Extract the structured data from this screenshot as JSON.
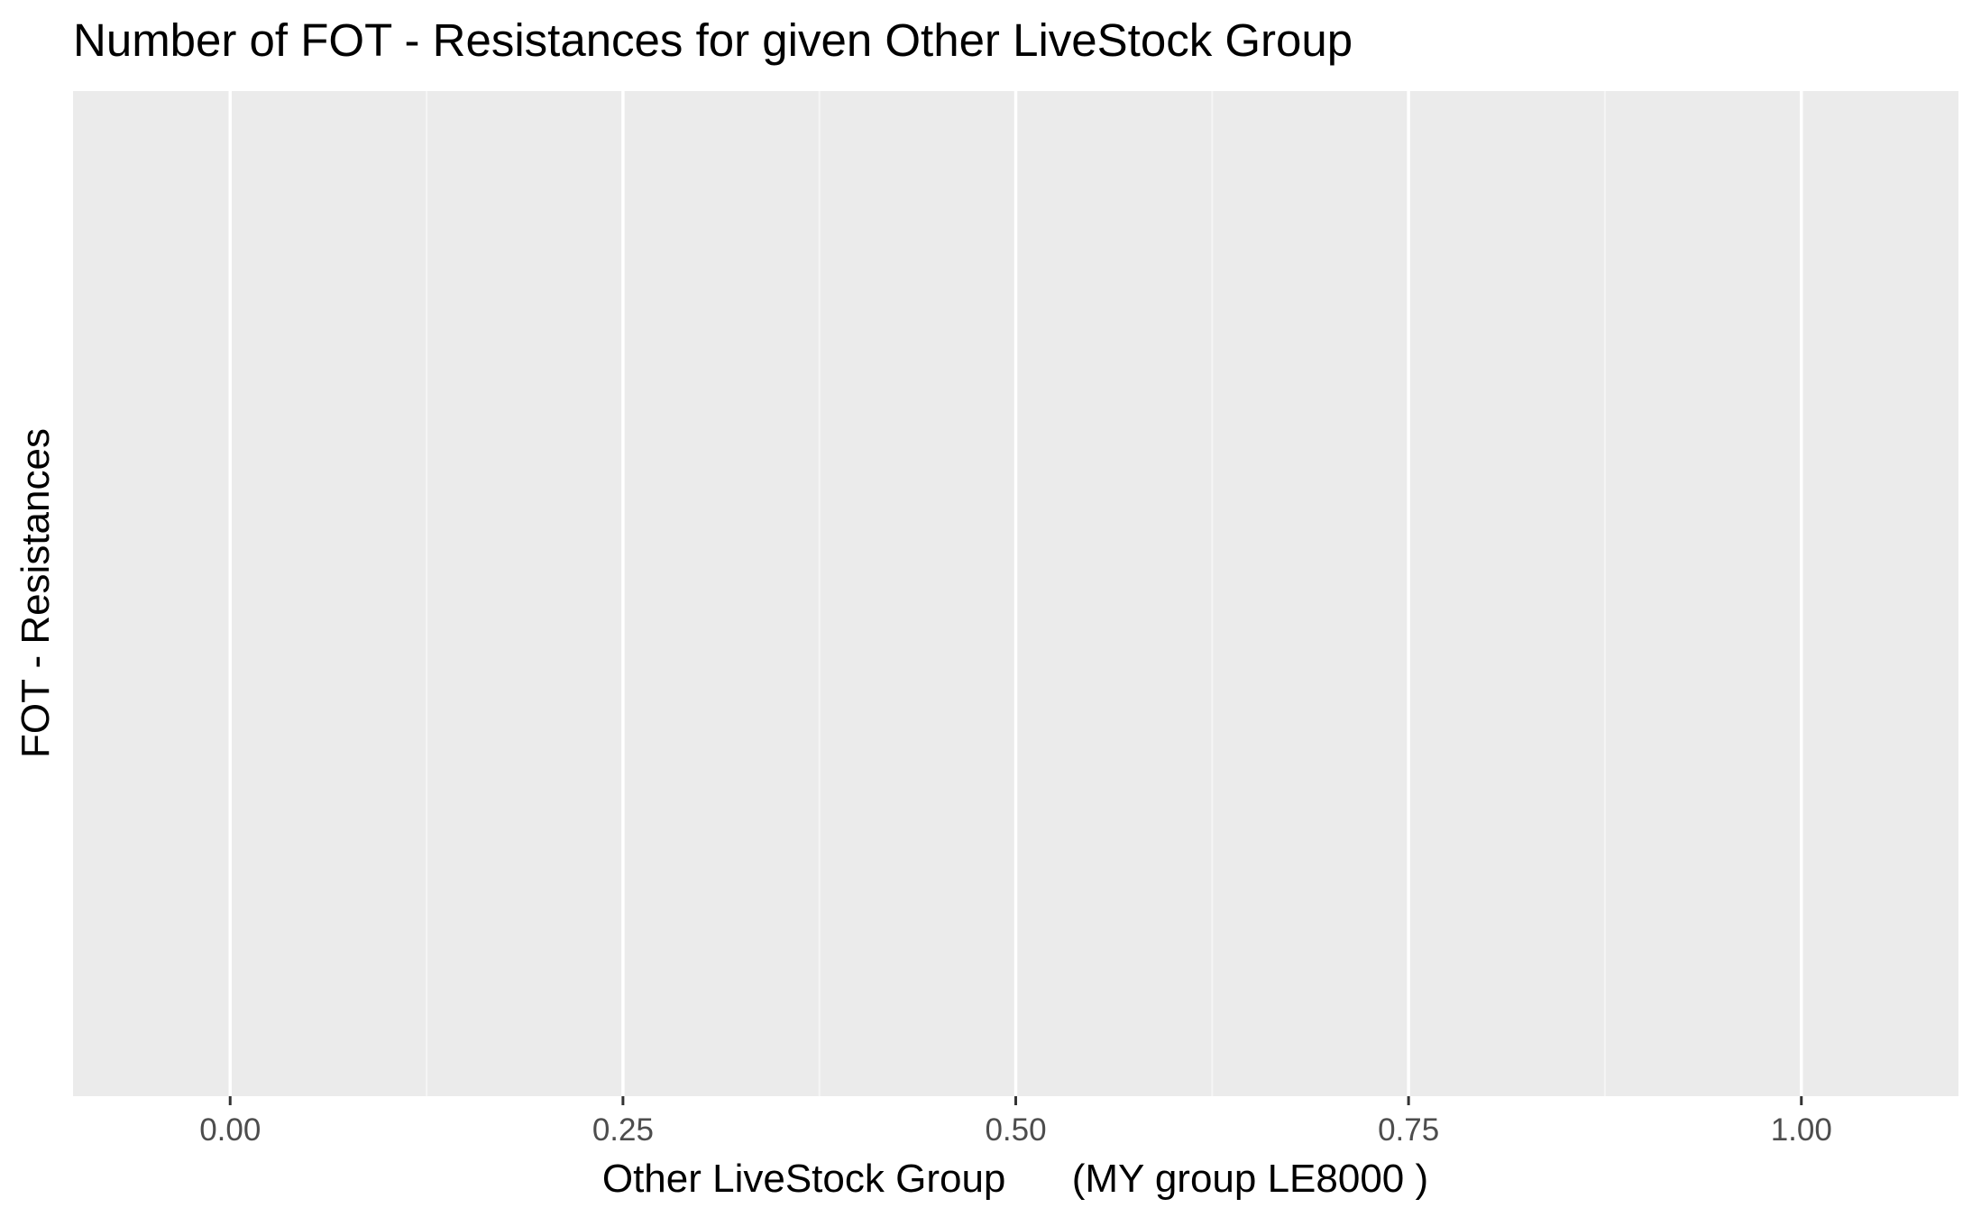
{
  "chart_data": {
    "type": "bar",
    "title": "Number of FOT - Resistances for given Other LiveStock Group",
    "xlabel": "Other LiveStock Group      (MY group LE8000 )",
    "ylabel": "FOT - Resistances",
    "x_ticks": [
      "0.00",
      "0.25",
      "0.50",
      "0.75",
      "1.00"
    ],
    "x_tick_values": [
      0,
      0.25,
      0.5,
      0.75,
      1.0
    ],
    "xlim": [
      -0.1,
      1.1
    ],
    "categories": [],
    "values": [],
    "grid": true,
    "legend": "none",
    "colors": {
      "panel_background": "#EBEBEB",
      "grid_major": "#FFFFFF",
      "grid_minor": "#F5F5F5",
      "tick_label": "#4D4D4D",
      "text": "#000000"
    }
  }
}
